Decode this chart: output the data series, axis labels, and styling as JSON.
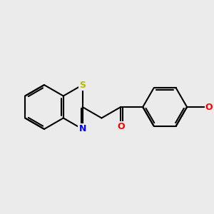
{
  "background_color": "#ebebeb",
  "bond_color": "#000000",
  "sulfur_color": "#b8b800",
  "nitrogen_color": "#0000ff",
  "oxygen_color": "#ff0000",
  "line_width": 1.5,
  "figsize": [
    3.0,
    3.0
  ],
  "dpi": 100,
  "xlim": [
    -2.8,
    3.8
  ],
  "ylim": [
    -2.2,
    2.2
  ]
}
